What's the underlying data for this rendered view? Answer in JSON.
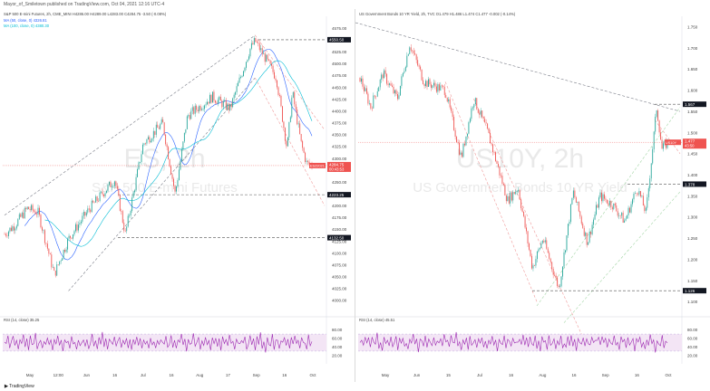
{
  "header": {
    "publisher": "Mayor_of_Smiletown published on TradingView.com, Oct 04, 2021 12:16 UTC-4"
  },
  "footer": {
    "brand": "TradingView"
  },
  "colors": {
    "up": "#26a69a",
    "down": "#ef5350",
    "rsi": "#9c27b0",
    "ma50": "#2962ff",
    "ma100": "#00bcd4",
    "price_tag": "#ef5350",
    "trend": "#787b86"
  },
  "chart_data": [
    {
      "type": "candlestick",
      "symbol": "ES",
      "interval": "2h",
      "title": "S&P 500 E-mini Futures",
      "legend_line": "S&P 500 E-mini Futures, 2h, CME_MINI  H4286.00  H4289.00  L4283.00  C4284.75  -3.50 (-0.08%)",
      "indicators": [
        "MA (50, close, 0)  4326.81",
        "MA (100, close, 0)  4380.30"
      ],
      "rsi_label": "RSI (14, close)  35.25",
      "ylim": [
        3975,
        4600
      ],
      "y_ticks": [
        "4575.00",
        "4550.00",
        "4525.00",
        "4500.00",
        "4475.00",
        "4450.00",
        "4425.00",
        "4400.00",
        "4375.00",
        "4350.00",
        "4325.00",
        "4300.00",
        "4275.00",
        "4250.00",
        "4225.00",
        "4200.00",
        "4175.00",
        "4150.00",
        "4125.00",
        "4100.00",
        "4075.00",
        "4050.00",
        "4025.00",
        "4000.00"
      ],
      "price_tag": {
        "value": 4284.75,
        "label": "4284.75",
        "countdown": "00:43:53",
        "symbol_tag": "ESZ2021"
      },
      "levels": [
        {
          "value": 4550.5,
          "label": "4550.50"
        },
        {
          "value": 4223.25,
          "label": "4223.25"
        },
        {
          "value": 4132.5,
          "label": "4132.50"
        }
      ],
      "x_labels": [
        "May",
        "12:00",
        "Jun",
        "16",
        "Jul",
        "16",
        "Aug",
        "17",
        "Sep",
        "16",
        "Oct"
      ],
      "key_points": [
        {
          "date": "Apr 14",
          "value": 4140
        },
        {
          "date": "Apr 20",
          "value": 4160
        },
        {
          "date": "Apr 27",
          "value": 4195
        },
        {
          "date": "May 3",
          "value": 4185
        },
        {
          "date": "May 12",
          "value": 4055
        },
        {
          "date": "May 20",
          "value": 4130
        },
        {
          "date": "Jun 1",
          "value": 4195
        },
        {
          "date": "Jun 15",
          "value": 4255
        },
        {
          "date": "Jun 21",
          "value": 4140
        },
        {
          "date": "Jul 1",
          "value": 4330
        },
        {
          "date": "Jul 12",
          "value": 4375
        },
        {
          "date": "Jul 19",
          "value": 4225
        },
        {
          "date": "Jul 26",
          "value": 4390
        },
        {
          "date": "Aug 9",
          "value": 4430
        },
        {
          "date": "Aug 19",
          "value": 4405
        },
        {
          "date": "Aug 30",
          "value": 4530
        },
        {
          "date": "Sep 2",
          "value": 4548
        },
        {
          "date": "Sep 8",
          "value": 4510
        },
        {
          "date": "Sep 14",
          "value": 4470
        },
        {
          "date": "Sep 20",
          "value": 4320
        },
        {
          "date": "Sep 23",
          "value": 4440
        },
        {
          "date": "Sep 28",
          "value": 4330
        },
        {
          "date": "Oct 1",
          "value": 4290
        },
        {
          "date": "Oct 4",
          "value": 4285
        }
      ],
      "rsi_ylim": [
        0,
        100
      ],
      "rsi_ticks": [
        "80.00",
        "60.00",
        "40.00",
        "20.00"
      ],
      "rsi_pattern": [
        55,
        45,
        62,
        38,
        50,
        66,
        42,
        58,
        35,
        60,
        48,
        70,
        40,
        55,
        30,
        62,
        50,
        44,
        68,
        38,
        52,
        60,
        34,
        57,
        46,
        63,
        41,
        54,
        36,
        59,
        49,
        65,
        43,
        56,
        32,
        61,
        47,
        53,
        39,
        64,
        45,
        50,
        37,
        58,
        44,
        52
      ]
    },
    {
      "type": "candlestick",
      "symbol": "US10Y",
      "interval": "2h",
      "title": "US Government Bonds 10 YR Yield",
      "legend_line": "US Government Bonds 10 YR Yield, 2h, TVC  O1.479  H1.486  L1.474  C1.477  -0.002 (-0.14%)",
      "rsi_label": "RSI (14, close)  45.51",
      "ylim": [
        1.075,
        1.775
      ],
      "y_ticks": [
        "1.750",
        "1.700",
        "1.650",
        "1.600",
        "1.550",
        "1.500",
        "1.450",
        "1.400",
        "1.350",
        "1.300",
        "1.250",
        "1.200",
        "1.150",
        "1.100"
      ],
      "price_tag": {
        "value": 1.477,
        "label": "1.477",
        "countdown": "43:50",
        "symbol_tag": "US10Y"
      },
      "levels": [
        {
          "value": 1.567,
          "label": "1.567"
        },
        {
          "value": 1.378,
          "label": "1.378"
        },
        {
          "value": 1.126,
          "label": "1.126"
        }
      ],
      "x_labels": [
        "May",
        "Jun",
        "15",
        "Jul",
        "16",
        "Aug",
        "16",
        "Sep",
        "16",
        "Oct"
      ],
      "key_points": [
        {
          "date": "Apr 14",
          "value": 1.63
        },
        {
          "date": "Apr 20",
          "value": 1.56
        },
        {
          "date": "Apr 27",
          "value": 1.64
        },
        {
          "date": "May 5",
          "value": 1.58
        },
        {
          "date": "May 12",
          "value": 1.71
        },
        {
          "date": "May 20",
          "value": 1.62
        },
        {
          "date": "Jun 1",
          "value": 1.6
        },
        {
          "date": "Jun 10",
          "value": 1.44
        },
        {
          "date": "Jun 17",
          "value": 1.58
        },
        {
          "date": "Jun 25",
          "value": 1.5
        },
        {
          "date": "Jul 6",
          "value": 1.34
        },
        {
          "date": "Jul 12",
          "value": 1.37
        },
        {
          "date": "Jul 20",
          "value": 1.18
        },
        {
          "date": "Jul 26",
          "value": 1.25
        },
        {
          "date": "Aug 4",
          "value": 1.13
        },
        {
          "date": "Aug 12",
          "value": 1.36
        },
        {
          "date": "Aug 20",
          "value": 1.24
        },
        {
          "date": "Aug 27",
          "value": 1.35
        },
        {
          "date": "Sep 3",
          "value": 1.33
        },
        {
          "date": "Sep 10",
          "value": 1.29
        },
        {
          "date": "Sep 17",
          "value": 1.37
        },
        {
          "date": "Sep 22",
          "value": 1.31
        },
        {
          "date": "Sep 28",
          "value": 1.56
        },
        {
          "date": "Oct 1",
          "value": 1.46
        },
        {
          "date": "Oct 4",
          "value": 1.477
        }
      ],
      "rsi_ylim": [
        0,
        100
      ],
      "rsi_ticks": [
        "80.00",
        "60.00",
        "40.00",
        "20.00"
      ],
      "rsi_pattern": [
        52,
        60,
        42,
        66,
        48,
        57,
        36,
        63,
        50,
        45,
        70,
        40,
        55,
        33,
        61,
        49,
        58,
        38,
        67,
        44,
        53,
        62,
        35,
        57,
        47,
        64,
        42,
        51,
        39,
        60,
        46,
        69,
        43,
        55,
        31,
        59,
        50,
        46,
        65,
        41,
        56,
        48,
        44,
        60,
        47,
        52
      ]
    }
  ]
}
